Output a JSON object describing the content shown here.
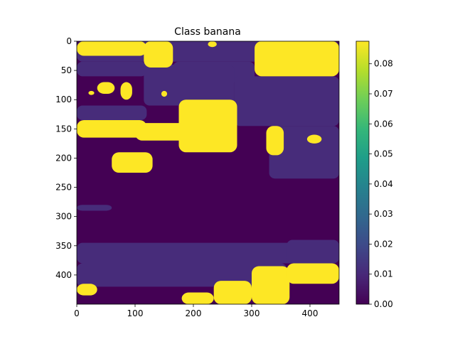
{
  "chart_data": {
    "type": "heatmap",
    "title": "Class banana",
    "xlabel": "",
    "ylabel": "",
    "x_ticks": [
      "0",
      "100",
      "200",
      "300",
      "400"
    ],
    "x_tick_values": [
      0,
      100,
      200,
      300,
      400
    ],
    "y_ticks": [
      "0",
      "50",
      "100",
      "150",
      "200",
      "250",
      "300",
      "350",
      "400"
    ],
    "y_tick_values": [
      0,
      50,
      100,
      150,
      200,
      250,
      300,
      350,
      400
    ],
    "xlim": [
      0,
      450
    ],
    "ylim": [
      450,
      0
    ],
    "colorbar": {
      "ticks": [
        "0.00",
        "0.01",
        "0.02",
        "0.03",
        "0.04",
        "0.05",
        "0.06",
        "0.07",
        "0.08"
      ],
      "tick_values": [
        0,
        0.01,
        0.02,
        0.03,
        0.04,
        0.05,
        0.06,
        0.07,
        0.08
      ],
      "range": [
        0,
        0.0875
      ],
      "colormap": "viridis"
    },
    "levels": {
      "low": 0.0,
      "mid": 0.007,
      "high": 0.0875
    },
    "regions_high": [
      {
        "x": [
          0,
          120
        ],
        "y": [
          0,
          25
        ]
      },
      {
        "x": [
          115,
          165
        ],
        "y": [
          0,
          45
        ]
      },
      {
        "x": [
          225,
          240
        ],
        "y": [
          0,
          10
        ]
      },
      {
        "x": [
          305,
          450
        ],
        "y": [
          0,
          60
        ]
      },
      {
        "x": [
          0,
          120
        ],
        "y": [
          135,
          165
        ]
      },
      {
        "x": [
          100,
          215
        ],
        "y": [
          140,
          170
        ]
      },
      {
        "x": [
          175,
          275
        ],
        "y": [
          100,
          190
        ]
      },
      {
        "x": [
          60,
          130
        ],
        "y": [
          190,
          225
        ]
      },
      {
        "x": [
          325,
          355
        ],
        "y": [
          145,
          195
        ]
      },
      {
        "x": [
          395,
          420
        ],
        "y": [
          160,
          175
        ]
      },
      {
        "x": [
          35,
          65
        ],
        "y": [
          70,
          90
        ]
      },
      {
        "x": [
          75,
          95
        ],
        "y": [
          70,
          100
        ]
      },
      {
        "x": [
          145,
          155
        ],
        "y": [
          85,
          95
        ]
      },
      {
        "x": [
          20,
          30
        ],
        "y": [
          85,
          92
        ]
      },
      {
        "x": [
          300,
          365
        ],
        "y": [
          385,
          450
        ]
      },
      {
        "x": [
          235,
          300
        ],
        "y": [
          410,
          450
        ]
      },
      {
        "x": [
          360,
          450
        ],
        "y": [
          380,
          415
        ]
      },
      {
        "x": [
          180,
          235
        ],
        "y": [
          430,
          450
        ]
      },
      {
        "x": [
          0,
          35
        ],
        "y": [
          415,
          435
        ]
      }
    ]
  },
  "colors": {
    "low": "#440154",
    "mid": "#472c7a",
    "high": "#fde725"
  }
}
